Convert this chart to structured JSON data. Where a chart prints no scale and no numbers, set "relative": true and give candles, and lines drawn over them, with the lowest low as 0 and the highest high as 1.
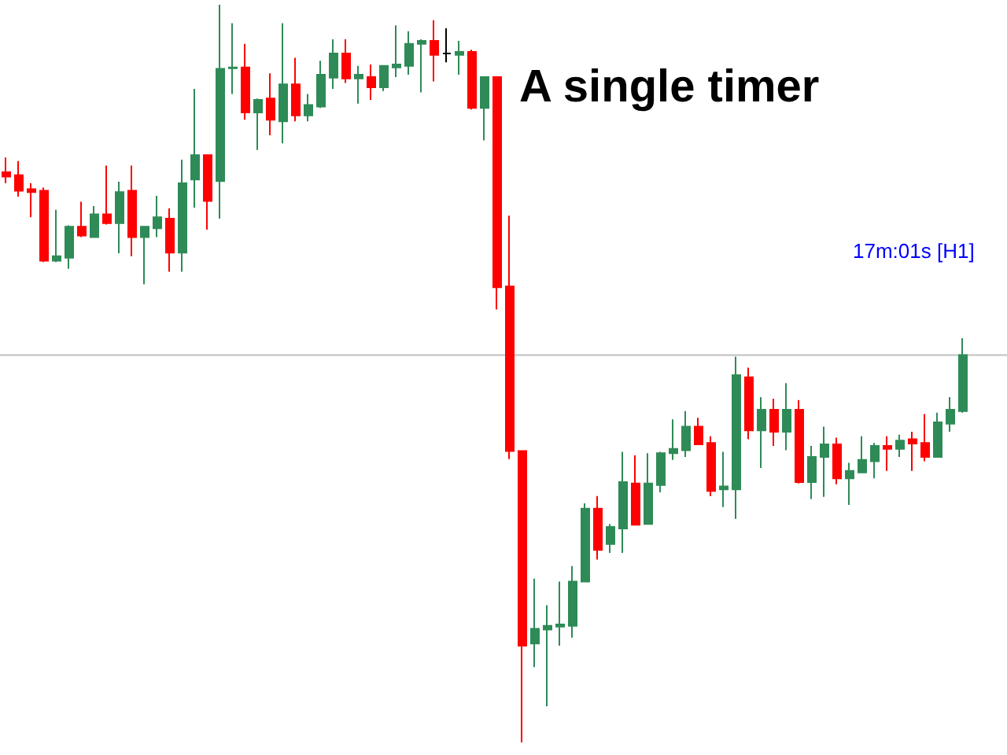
{
  "chart_data": {
    "type": "candlestick",
    "title": "A single timer",
    "annotations": [
      "17m:01s [H1]"
    ],
    "relative": true,
    "categories": [
      null,
      null,
      null,
      null,
      null,
      null,
      null,
      null,
      null,
      null,
      null,
      null,
      null,
      null,
      null,
      null,
      null,
      null,
      null,
      null,
      null,
      null,
      null,
      null,
      null,
      null,
      null,
      null,
      null,
      null,
      null,
      null,
      null,
      null,
      null,
      null,
      null,
      null,
      null,
      null,
      null,
      null,
      null,
      null,
      null,
      null,
      null,
      null,
      null,
      null,
      null,
      null,
      null,
      null,
      null,
      null,
      null,
      null,
      null,
      null,
      null,
      null,
      null,
      null,
      null,
      null,
      null,
      null,
      null,
      null,
      null,
      null,
      null,
      null,
      null,
      null,
      null
    ],
    "ohlc": [
      [
        0.773,
        0.793,
        0.758,
        0.767
      ],
      [
        0.769,
        0.788,
        0.74,
        0.748
      ],
      [
        0.75,
        0.758,
        0.712,
        0.746
      ],
      [
        0.748,
        0.752,
        0.651,
        0.653
      ],
      [
        0.653,
        0.722,
        0.651,
        0.659
      ],
      [
        0.657,
        0.701,
        0.642,
        0.699
      ],
      [
        0.699,
        0.733,
        0.685,
        0.687
      ],
      [
        0.685,
        0.727,
        0.685,
        0.716
      ],
      [
        0.716,
        0.782,
        0.702,
        0.704
      ],
      [
        0.704,
        0.76,
        0.663,
        0.746
      ],
      [
        0.748,
        0.782,
        0.659,
        0.685
      ],
      [
        0.685,
        0.699,
        0.621,
        0.699
      ],
      [
        0.697,
        0.741,
        0.685,
        0.712
      ],
      [
        0.71,
        0.724,
        0.638,
        0.664
      ],
      [
        0.664,
        0.79,
        0.638,
        0.758
      ],
      [
        0.763,
        0.886,
        0.725,
        0.796
      ],
      [
        0.796,
        0.796,
        0.695,
        0.734
      ],
      [
        0.761,
        1,
        0.71,
        0.913
      ],
      [
        0.914,
        0.975,
        0.879,
        0.915
      ],
      [
        0.915,
        0.947,
        0.844,
        0.854
      ],
      [
        0.854,
        0.873,
        0.803,
        0.871
      ],
      [
        0.873,
        0.907,
        0.823,
        0.844
      ],
      [
        0.842,
        0.975,
        0.812,
        0.892
      ],
      [
        0.892,
        0.928,
        0.842,
        0.85
      ],
      [
        0.85,
        0.879,
        0.842,
        0.864
      ],
      [
        0.862,
        0.924,
        0.86,
        0.905
      ],
      [
        0.901,
        0.953,
        0.886,
        0.934
      ],
      [
        0.934,
        0.953,
        0.894,
        0.9
      ],
      [
        0.9,
        0.917,
        0.866,
        0.905
      ],
      [
        0.902,
        0.919,
        0.871,
        0.888
      ],
      [
        0.888,
        0.917,
        0.883,
        0.917
      ],
      [
        0.915,
        0.972,
        0.902,
        0.919
      ],
      [
        0.917,
        0.964,
        0.905,
        0.947
      ],
      [
        0.947,
        0.953,
        0.881,
        0.951
      ],
      [
        0.951,
        0.979,
        0.896,
        0.932
      ],
      [
        0.934,
        0.968,
        0.922,
        0.934
      ],
      [
        0.932,
        0.951,
        0.905,
        0.936
      ],
      [
        0.936,
        0.939,
        0.858,
        0.86
      ],
      [
        0.86,
        0.902,
        0.816,
        0.902
      ],
      [
        0.902,
        0.902,
        0.587,
        0.617
      ],
      [
        0.618,
        0.714,
        0.384,
        0.395
      ],
      [
        0.395,
        0.395,
        0,
        0.131
      ],
      [
        0.134,
        0.222,
        0.102,
        0.154
      ],
      [
        0.153,
        0.186,
        0.049,
        0.158
      ],
      [
        0.157,
        0.218,
        0.131,
        0.16
      ],
      [
        0.158,
        0.239,
        0.142,
        0.218
      ],
      [
        0.218,
        0.324,
        0.218,
        0.317
      ],
      [
        0.317,
        0.334,
        0.248,
        0.261
      ],
      [
        0.269,
        0.296,
        0.257,
        0.292
      ],
      [
        0.29,
        0.394,
        0.257,
        0.353
      ],
      [
        0.351,
        0.389,
        0.295,
        0.295
      ],
      [
        0.296,
        0.392,
        0.295,
        0.351
      ],
      [
        0.349,
        0.394,
        0.339,
        0.392
      ],
      [
        0.392,
        0.438,
        0.383,
        0.398
      ],
      [
        0.396,
        0.449,
        0.387,
        0.428
      ],
      [
        0.428,
        0.44,
        0.404,
        0.404
      ],
      [
        0.406,
        0.415,
        0.334,
        0.341
      ],
      [
        0.343,
        0.394,
        0.319,
        0.347
      ],
      [
        0.343,
        0.523,
        0.303,
        0.498
      ],
      [
        0.495,
        0.508,
        0.411,
        0.423
      ],
      [
        0.423,
        0.468,
        0.372,
        0.451
      ],
      [
        0.451,
        0.466,
        0.402,
        0.421
      ],
      [
        0.421,
        0.487,
        0.396,
        0.451
      ],
      [
        0.451,
        0.464,
        0.351,
        0.353
      ],
      [
        0.353,
        0.402,
        0.33,
        0.387
      ],
      [
        0.387,
        0.428,
        0.333,
        0.404
      ],
      [
        0.404,
        0.413,
        0.35,
        0.358
      ],
      [
        0.358,
        0.379,
        0.322,
        0.368
      ],
      [
        0.366,
        0.415,
        0.366,
        0.383
      ],
      [
        0.381,
        0.406,
        0.358,
        0.402
      ],
      [
        0.402,
        0.415,
        0.368,
        0.398
      ],
      [
        0.398,
        0.417,
        0.387,
        0.409
      ],
      [
        0.411,
        0.421,
        0.368,
        0.405
      ],
      [
        0.406,
        0.445,
        0.381,
        0.387
      ],
      [
        0.387,
        0.447,
        0.387,
        0.434
      ],
      [
        0.432,
        0.468,
        0.421,
        0.451
      ],
      [
        0.449,
        0.548,
        0.447,
        0.525
      ]
    ],
    "colors": [
      "#ff0000",
      "#ff0000",
      "#ff0000",
      "#ff0000",
      "#2e8b57",
      "#2e8b57",
      "#ff0000",
      "#2e8b57",
      "#ff0000",
      "#2e8b57",
      "#ff0000",
      "#2e8b57",
      "#2e8b57",
      "#ff0000",
      "#2e8b57",
      "#2e8b57",
      "#ff0000",
      "#2e8b57",
      "#2e8b57",
      "#ff0000",
      "#2e8b57",
      "#ff0000",
      "#2e8b57",
      "#ff0000",
      "#2e8b57",
      "#2e8b57",
      "#2e8b57",
      "#ff0000",
      "#2e8b57",
      "#ff0000",
      "#2e8b57",
      "#2e8b57",
      "#2e8b57",
      "#2e8b57",
      "#ff0000",
      "#000000",
      "#2e8b57",
      "#ff0000",
      "#2e8b57",
      "#ff0000",
      "#ff0000",
      "#ff0000",
      "#2e8b57",
      "#2e8b57",
      "#2e8b57",
      "#2e8b57",
      "#2e8b57",
      "#ff0000",
      "#2e8b57",
      "#2e8b57",
      "#ff0000",
      "#2e8b57",
      "#2e8b57",
      "#2e8b57",
      "#2e8b57",
      "#ff0000",
      "#ff0000",
      "#2e8b57",
      "#2e8b57",
      "#ff0000",
      "#2e8b57",
      "#ff0000",
      "#2e8b57",
      "#ff0000",
      "#2e8b57",
      "#2e8b57",
      "#ff0000",
      "#2e8b57",
      "#2e8b57",
      "#2e8b57",
      "#ff0000",
      "#2e8b57",
      "#ff0000",
      "#ff0000",
      "#2e8b57",
      "#2e8b57",
      "#2e8b57"
    ],
    "ref_lines": [
      {
        "axis": "y",
        "value": 0.525,
        "color": "#c0c0c0"
      }
    ]
  }
}
